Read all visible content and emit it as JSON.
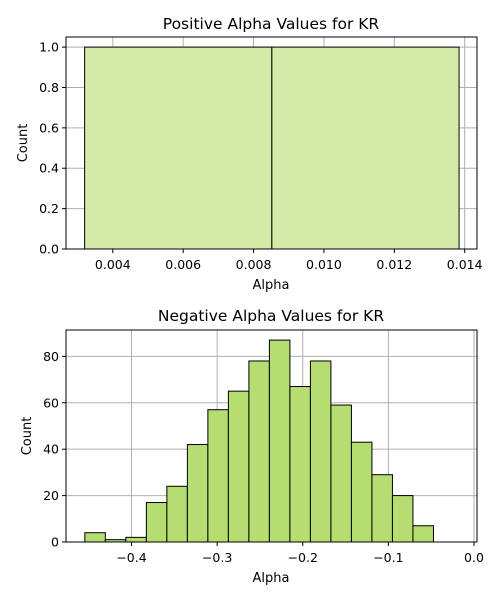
{
  "chart_data": [
    {
      "type": "bar",
      "title": "Positive Alpha Values for KR",
      "xlabel": "Alpha",
      "ylabel": "Count",
      "xlim": [
        0.00267,
        0.01435
      ],
      "ylim": [
        0,
        1.05
      ],
      "xticks": [
        0.004,
        0.006,
        0.008,
        0.01,
        0.012,
        0.014
      ],
      "xtick_labels": [
        "0.004",
        "0.006",
        "0.008",
        "0.010",
        "0.012",
        "0.014"
      ],
      "yticks": [
        0.0,
        0.2,
        0.4,
        0.6,
        0.8,
        1.0
      ],
      "ytick_labels": [
        "0.0",
        "0.2",
        "0.4",
        "0.6",
        "0.8",
        "1.0"
      ],
      "grid": true,
      "bar_color": "#d4eaa8",
      "bins": [
        {
          "x0": 0.0032,
          "x1": 0.00852,
          "count": 1
        },
        {
          "x0": 0.00852,
          "x1": 0.01384,
          "count": 1
        }
      ]
    },
    {
      "type": "bar",
      "title": "Negative Alpha Values for KR",
      "xlabel": "Alpha",
      "ylabel": "Count",
      "xlim": [
        -0.4765,
        0.0035
      ],
      "ylim": [
        0,
        91.35
      ],
      "xticks": [
        -0.4,
        -0.3,
        -0.2,
        -0.1,
        0.0
      ],
      "xtick_labels": [
        "−0.4",
        "−0.3",
        "−0.2",
        "−0.1",
        "0.0"
      ],
      "yticks": [
        0,
        20,
        40,
        60,
        80
      ],
      "ytick_labels": [
        "0",
        "20",
        "40",
        "60",
        "80"
      ],
      "grid": true,
      "bar_color": "#b5dd72",
      "bin_start": -0.4545,
      "bin_width": 0.02395,
      "counts": [
        4,
        1,
        2,
        17,
        24,
        42,
        57,
        65,
        78,
        87,
        67,
        78,
        59,
        43,
        29,
        20,
        7
      ]
    }
  ]
}
